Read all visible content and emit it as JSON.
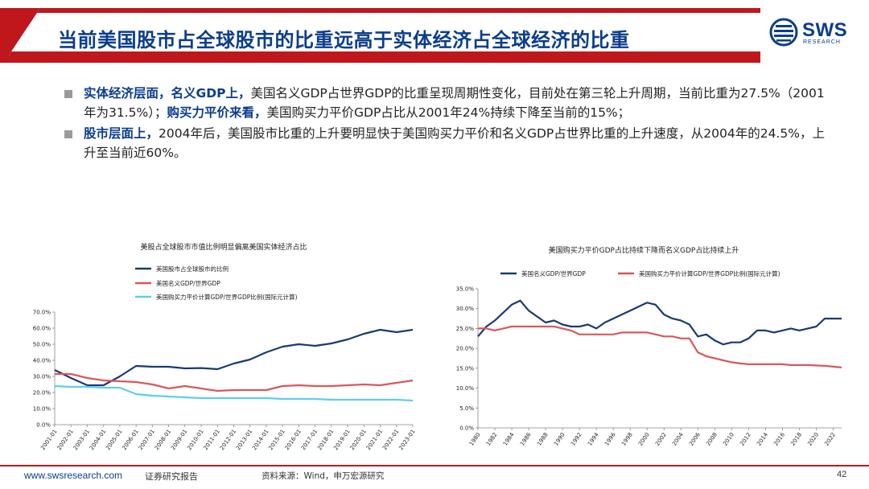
{
  "title": "当前美国股市占全球股市的比重远高于实体经济占全球经济的比重",
  "logo": {
    "text": "SWS",
    "sub": "RESEARCH"
  },
  "bullets": [
    {
      "bold": "实体经济层面，名义GDP上，",
      "text": "美国名义GDP占世界GDP的比重呈现周期性变化，目前处在第三轮上升周期，当前比重为27.5%（2001年为31.5%）；",
      "bold2": "购买力平价来看，",
      "text2": "美国购买力平价GDP占比从2001年24%持续下降至当前的15%；"
    },
    {
      "bold": "股市层面上，",
      "text": "2004年后，美国股市比重的上升要明显快于美国购买力平价和名义GDP占世界比重的上升速度，从2004年的24.5%，上升至当前近60%。",
      "bold2": "",
      "text2": ""
    }
  ],
  "footer": {
    "url": "www.swsresearch.com",
    "report": "证券研究报告",
    "source": "资料来源：Wind，申万宏源研究",
    "page": "42"
  },
  "colors": {
    "navy": "#1a3a73",
    "red": "#d9575b",
    "cyan": "#5ecdf0",
    "brand_red": "#c0171c",
    "brand_blue": "#0b3d8c"
  },
  "chart_data": [
    {
      "type": "line",
      "title": "美股占全球股市市值比例明显偏离美国实体经济占比",
      "x": [
        "2001-01",
        "2002-01",
        "2003-01",
        "2004-01",
        "2005-01",
        "2006-01",
        "2007-01",
        "2008-01",
        "2009-01",
        "2010-01",
        "2011-01",
        "2012-01",
        "2013-01",
        "2014-01",
        "2015-01",
        "2016-01",
        "2017-01",
        "2018-01",
        "2019-01",
        "2020-01",
        "2021-01",
        "2022-01",
        "2023-01"
      ],
      "ylim": [
        0,
        70
      ],
      "yticks": [
        "0.0%",
        "10.0%",
        "20.0%",
        "30.0%",
        "40.0%",
        "50.0%",
        "60.0%",
        "70.0%"
      ],
      "legend_position": "top-left",
      "series": [
        {
          "name": "美国股市占全球股市的比例",
          "color": "#1a3a73",
          "values": [
            34,
            29,
            24.5,
            24.5,
            30,
            36.5,
            36,
            36,
            35,
            35.2,
            34.5,
            38,
            40.5,
            45,
            48.5,
            50,
            49,
            50.5,
            53,
            56.5,
            59,
            57.5,
            59
          ]
        },
        {
          "name": "美国名义GDP/世界GDP",
          "color": "#d9575b",
          "values": [
            31.5,
            31.5,
            29,
            27.5,
            27,
            26.5,
            25,
            22.5,
            24,
            22.5,
            21,
            21.5,
            21.5,
            21.5,
            24,
            24.5,
            24,
            24,
            24.5,
            25,
            24.5,
            26,
            27.5
          ]
        },
        {
          "name": "美国购买力平价计算GDP/世界GDP比例(国际元计算)",
          "color": "#5ecdf0",
          "values": [
            24,
            23.5,
            23.5,
            23,
            23,
            19,
            18,
            17.5,
            17,
            16.5,
            16.5,
            16.5,
            16.5,
            16.5,
            16,
            16,
            16,
            15.5,
            15.5,
            15.5,
            15.5,
            15.5,
            15
          ]
        }
      ]
    },
    {
      "type": "line",
      "title": "美国购买力平价GDP占比持续下降而名义GDP占比持续上升",
      "x": [
        1980,
        1981,
        1982,
        1983,
        1984,
        1985,
        1986,
        1987,
        1988,
        1989,
        1990,
        1991,
        1992,
        1993,
        1994,
        1995,
        1996,
        1997,
        1998,
        1999,
        2000,
        2001,
        2002,
        2003,
        2004,
        2005,
        2006,
        2007,
        2008,
        2009,
        2010,
        2011,
        2012,
        2013,
        2014,
        2015,
        2016,
        2017,
        2018,
        2019,
        2020,
        2021,
        2022,
        2023
      ],
      "xticks": [
        "1980",
        "1982",
        "1984",
        "1986",
        "1988",
        "1990",
        "1992",
        "1994",
        "1996",
        "1998",
        "2000",
        "2002",
        "2004",
        "2006",
        "2008",
        "2010",
        "2012",
        "2014",
        "2016",
        "2018",
        "2020",
        "2022"
      ],
      "ylim": [
        0,
        35
      ],
      "yticks": [
        "0.0%",
        "5.0%",
        "10.0%",
        "15.0%",
        "20.0%",
        "25.0%",
        "30.0%",
        "35.0%"
      ],
      "legend_position": "top",
      "series": [
        {
          "name": "美国名义GDP/世界GDP",
          "color": "#1a3a73",
          "values": [
            23,
            25.5,
            27,
            29,
            31,
            32,
            29.5,
            28,
            26.5,
            27,
            26,
            25.5,
            25.5,
            26,
            25,
            26.5,
            27.5,
            28.5,
            29.5,
            30.5,
            31.5,
            31,
            28.5,
            27.5,
            27,
            26,
            23,
            23.5,
            22,
            21,
            21.5,
            21.5,
            22.5,
            24.5,
            24.5,
            24,
            24.5,
            25,
            24.5,
            25,
            25.5,
            27.5,
            27.5,
            27.5
          ]
        },
        {
          "name": "美国购买力平价计算GDP/世界GDP比例(国际元计算)",
          "color": "#d9575b",
          "values": [
            25,
            25,
            24.5,
            25,
            25.5,
            25.5,
            25.5,
            25.5,
            25.5,
            25.5,
            25,
            24.5,
            23.5,
            23.5,
            23.5,
            23.5,
            23.5,
            24,
            24,
            24,
            24,
            23.5,
            23,
            23,
            22.5,
            22.5,
            19,
            18,
            17.5,
            17,
            16.5,
            16.2,
            16,
            16,
            16,
            16,
            16,
            15.8,
            15.8,
            15.8,
            15.7,
            15.6,
            15.4,
            15.2
          ]
        }
      ]
    }
  ]
}
